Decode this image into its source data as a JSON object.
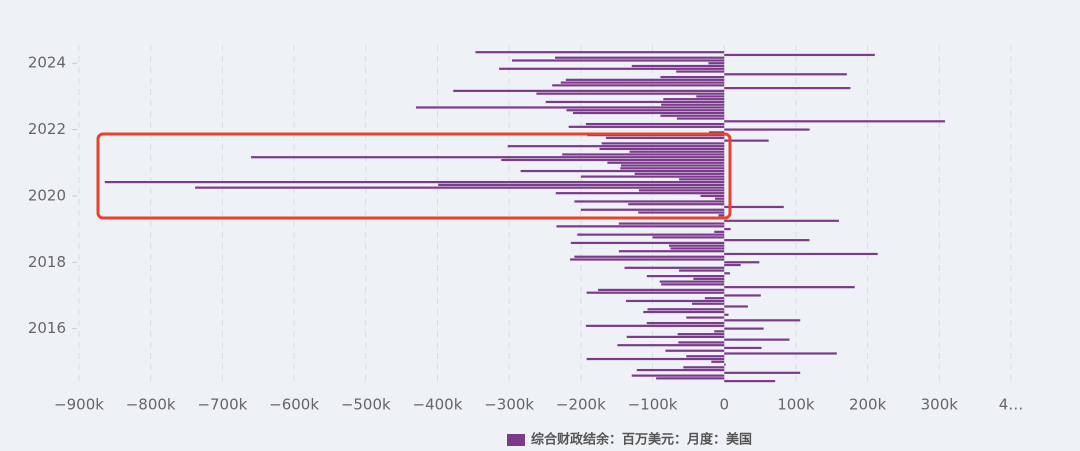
{
  "chart_data": {
    "type": "hbar",
    "legend_label": "综合财政结余：百万美元：月度：美国",
    "color": "#7b3a8a",
    "x": [
      2014.417,
      2014.5,
      2014.583,
      2014.667,
      2014.75,
      2014.833,
      2014.917,
      2015,
      2015.083,
      2015.167,
      2015.25,
      2015.333,
      2015.417,
      2015.5,
      2015.583,
      2015.667,
      2015.75,
      2015.833,
      2015.917,
      2016,
      2016.083,
      2016.167,
      2016.25,
      2016.333,
      2016.417,
      2016.5,
      2016.583,
      2016.667,
      2016.75,
      2016.833,
      2016.917,
      2017,
      2017.083,
      2017.167,
      2017.25,
      2017.333,
      2017.417,
      2017.5,
      2017.583,
      2017.667,
      2017.75,
      2017.833,
      2017.917,
      2018,
      2018.083,
      2018.167,
      2018.25,
      2018.333,
      2018.417,
      2018.5,
      2018.583,
      2018.667,
      2018.75,
      2018.833,
      2018.917,
      2019,
      2019.083,
      2019.167,
      2019.25,
      2019.333,
      2019.417,
      2019.5,
      2019.583,
      2019.667,
      2019.75,
      2019.833,
      2019.917,
      2020,
      2020.083,
      2020.167,
      2020.25,
      2020.333,
      2020.417,
      2020.5,
      2020.583,
      2020.667,
      2020.75,
      2020.833,
      2020.917,
      2021,
      2021.083,
      2021.167,
      2021.25,
      2021.333,
      2021.417,
      2021.5,
      2021.583,
      2021.667,
      2021.75,
      2021.833,
      2021.917,
      2022,
      2022.083,
      2022.167,
      2022.25,
      2022.333,
      2022.417,
      2022.5,
      2022.583,
      2022.667,
      2022.75,
      2022.833,
      2022.917,
      2023,
      2023.083,
      2023.167,
      2023.25,
      2023.333,
      2023.417,
      2023.5,
      2023.583,
      2023.667,
      2023.75,
      2023.833,
      2023.917,
      2024,
      2024.083,
      2024.167,
      2024.25,
      2024.333
    ],
    "values": [
      71000,
      -95000,
      -129000,
      106000,
      -122000,
      -57000,
      2000,
      -18000,
      -192000,
      -53000,
      157000,
      -82000,
      52000,
      -149000,
      -64000,
      91000,
      -136000,
      -65000,
      -14000,
      55000,
      -193000,
      -108000,
      106000,
      -53000,
      6000,
      -113000,
      -107000,
      33000,
      -45000,
      -137000,
      -27000,
      51000,
      -192000,
      -176000,
      182000,
      -88000,
      -90000,
      -43000,
      -108000,
      8000,
      -63000,
      -139000,
      23000,
      49000,
      -215000,
      -209000,
      214000,
      -147000,
      -75000,
      -77000,
      -214000,
      119000,
      -100000,
      -205000,
      -14000,
      9000,
      -234000,
      -147000,
      160000,
      -208000,
      -8000,
      -120000,
      -200000,
      83000,
      -134000,
      -209000,
      -13000,
      -33000,
      -235000,
      -119000,
      -738000,
      -399000,
      -864000,
      -63000,
      -200000,
      -125000,
      -284000,
      -145000,
      -144000,
      -163000,
      -311000,
      -660000,
      -226000,
      -132000,
      -174000,
      -302000,
      -171000,
      62000,
      -165000,
      -191000,
      -21000,
      119000,
      -217000,
      -193000,
      308000,
      -66000,
      -89000,
      -211000,
      -220000,
      -430000,
      -88000,
      -249000,
      -85000,
      -39000,
      -262000,
      -378000,
      176000,
      -240000,
      -228000,
      -221000,
      -89000,
      171000,
      -67000,
      -314000,
      -129000,
      -22000,
      -296000,
      -236000,
      210000,
      -347000
    ],
    "xlim": [
      -900000,
      400000
    ],
    "xticks": [
      {
        "value": -900000,
        "label": "−900k"
      },
      {
        "value": -800000,
        "label": "−800k"
      },
      {
        "value": -700000,
        "label": "−700k"
      },
      {
        "value": -600000,
        "label": "−600k"
      },
      {
        "value": -500000,
        "label": "−500k"
      },
      {
        "value": -400000,
        "label": "−400k"
      },
      {
        "value": -300000,
        "label": "−300k"
      },
      {
        "value": -200000,
        "label": "−200k"
      },
      {
        "value": -100000,
        "label": "−100k"
      },
      0,
      {
        "value": 100000,
        "label": "100k"
      },
      {
        "value": 200000,
        "label": "200k"
      },
      {
        "value": 300000,
        "label": "300k"
      },
      {
        "value": 400000,
        "label": "4…"
      }
    ],
    "ylim": [
      2014.3,
      2024.55
    ],
    "yticks": [
      2016,
      2018,
      2020,
      2022,
      2024
    ],
    "grid": true
  }
}
